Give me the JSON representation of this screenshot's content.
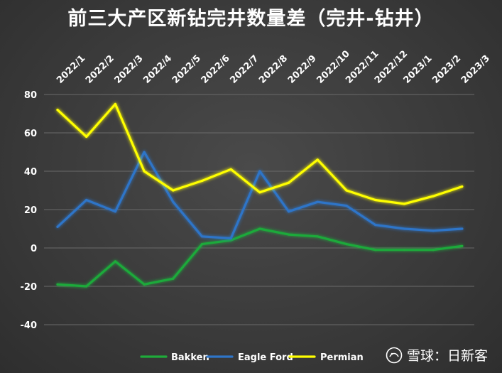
{
  "chart_data": {
    "type": "line",
    "title": "前三大产区新钻完井数量差（完井-钻井）",
    "xlabel": "",
    "ylabel": "",
    "categories": [
      "2022/1",
      "2022/2",
      "2022/3",
      "2022/4",
      "2022/5",
      "2022/6",
      "2022/7",
      "2022/8",
      "2022/9",
      "2022/10",
      "2022/11",
      "2022/12",
      "2023/1",
      "2023/2",
      "2023/3"
    ],
    "ylim": [
      -40,
      80
    ],
    "yticks": [
      -40,
      -20,
      0,
      20,
      40,
      60,
      80
    ],
    "grid": true,
    "legend_position": "bottom",
    "series": [
      {
        "name": "Bakken",
        "color": "#1faa3a",
        "values": [
          -19,
          -20,
          -7,
          -19,
          -16,
          2,
          4,
          10,
          7,
          6,
          2,
          -1,
          -1,
          -1,
          1
        ]
      },
      {
        "name": "Eagle Ford",
        "color": "#2e75c8",
        "values": [
          11,
          25,
          19,
          50,
          24,
          6,
          5,
          40,
          19,
          24,
          22,
          12,
          10,
          9,
          10
        ]
      },
      {
        "name": "Permian",
        "color": "#ffff00",
        "values": [
          72,
          58,
          75,
          40,
          30,
          35,
          41,
          29,
          34,
          46,
          30,
          25,
          23,
          27,
          32
        ]
      }
    ]
  },
  "watermark": {
    "text": "雪球：日新客"
  }
}
